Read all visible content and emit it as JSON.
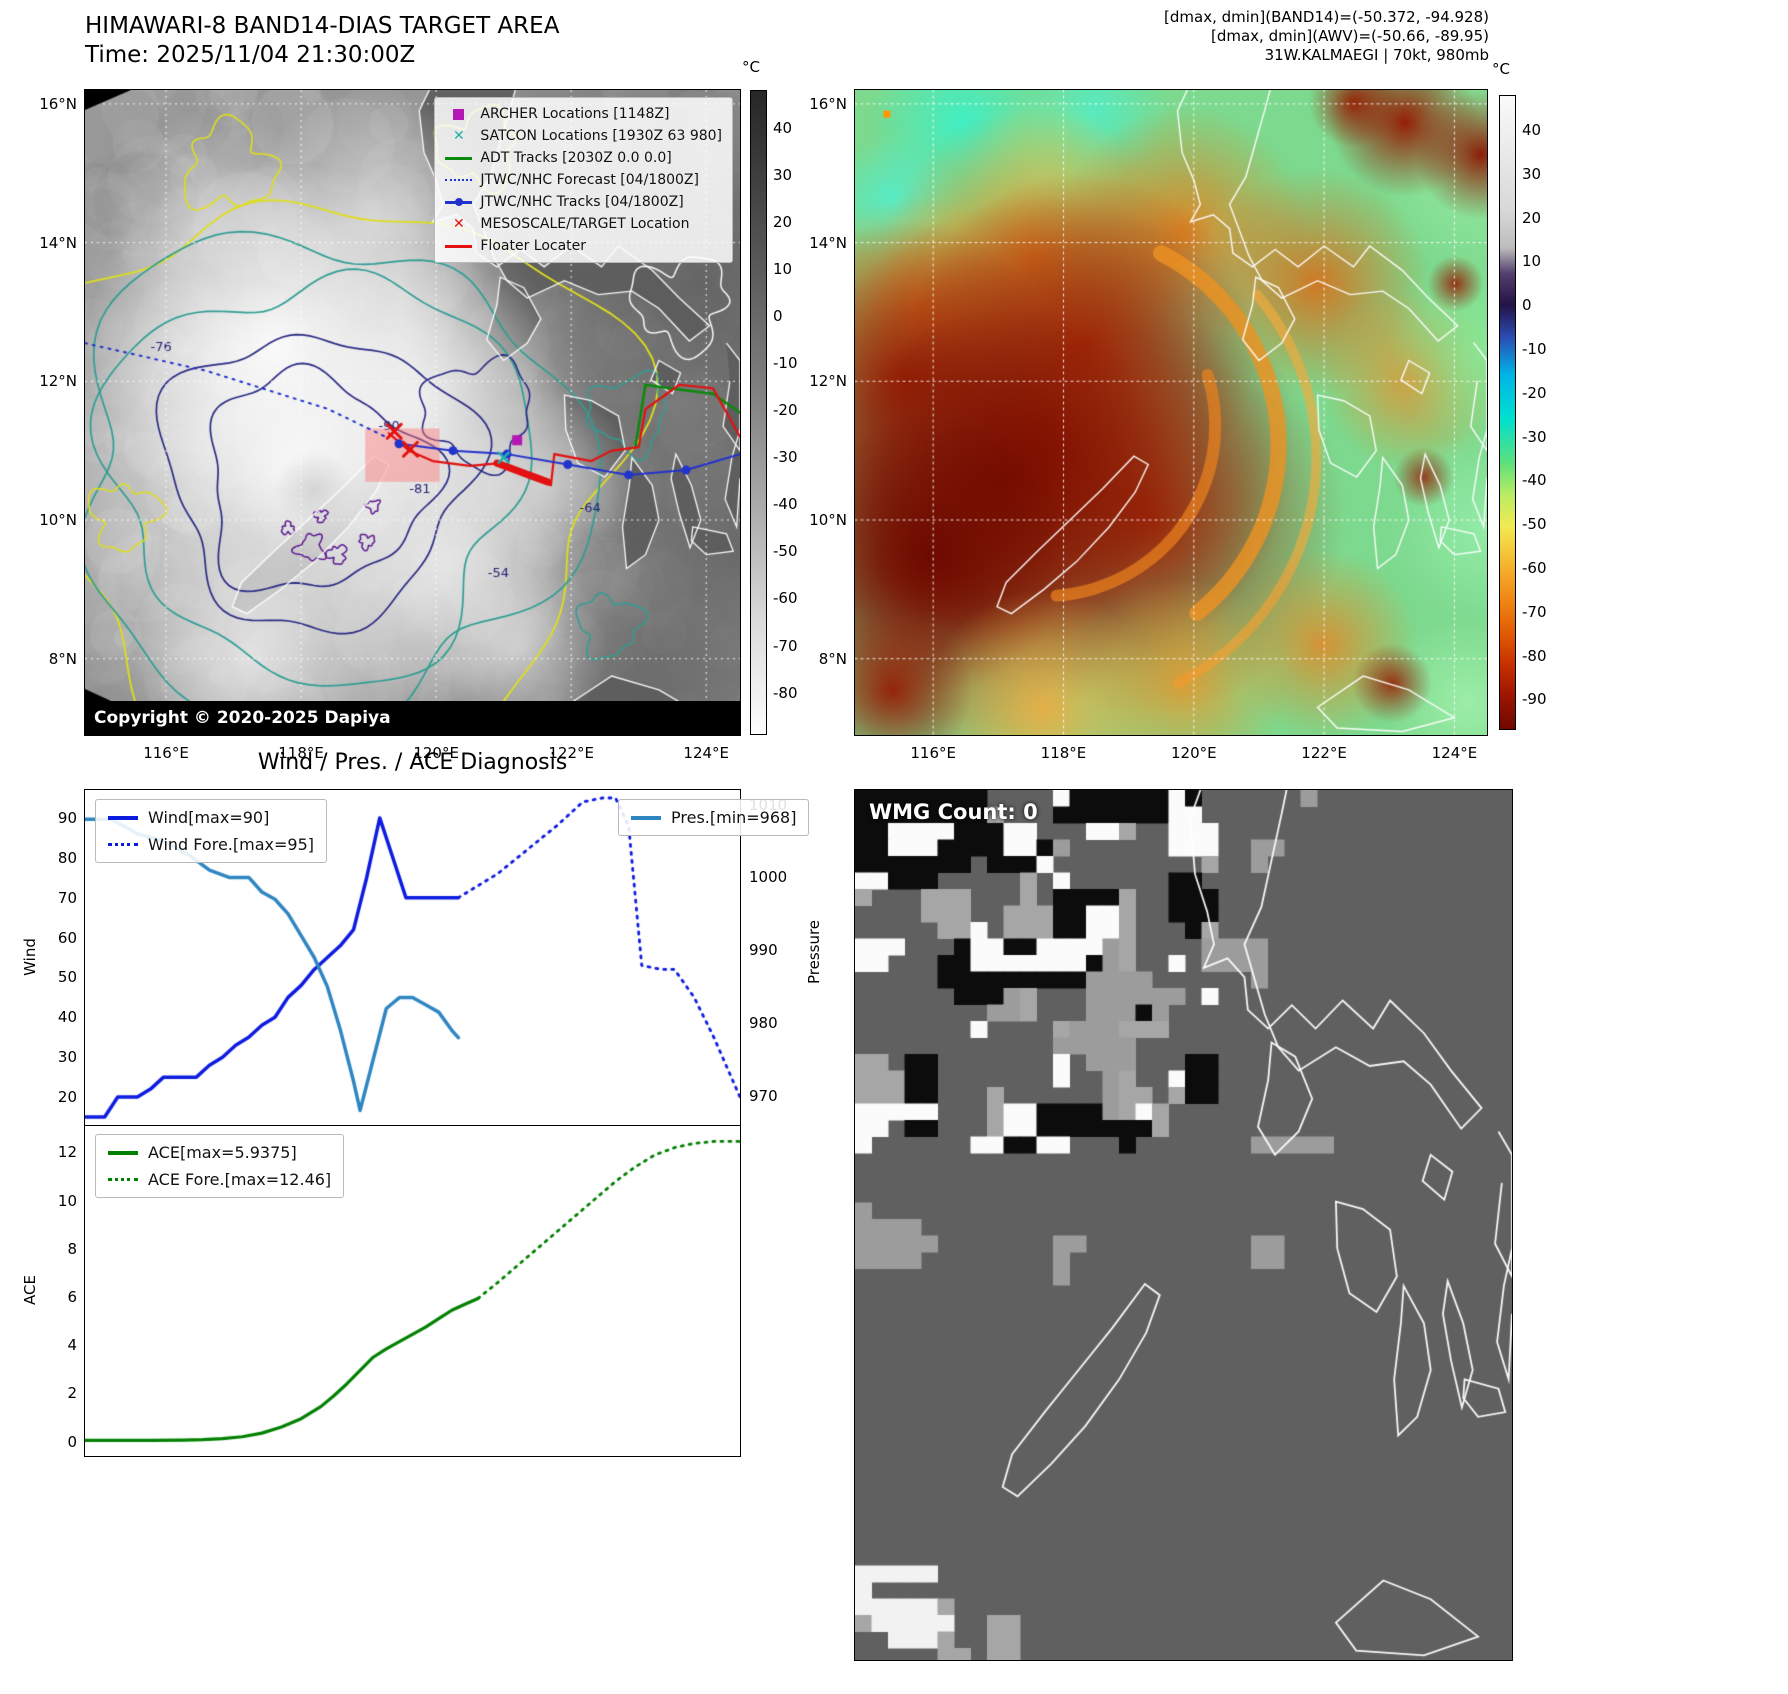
{
  "band14": {
    "title": "HIMAWARI-8 BAND14-DIAS TARGET AREA",
    "time_line": "Time: 2025/11/04 21:30:00Z",
    "copyright": "Copyright © 2020-2025 Dapiya",
    "colorbar_unit": "°C",
    "colorbar_ticks": [
      40,
      30,
      20,
      10,
      0,
      -10,
      -20,
      -30,
      -40,
      -50,
      -60,
      -70,
      -80
    ],
    "lat_ticks": [
      "16°N",
      "14°N",
      "12°N",
      "10°N",
      "8°N"
    ],
    "lon_ticks": [
      "116°E",
      "118°E",
      "120°E",
      "122°E",
      "124°E"
    ],
    "contour_labels": [
      "-76",
      "-81",
      "-90",
      "-64",
      "-54"
    ],
    "legend": [
      {
        "label": "ARCHER Locations [1148Z]",
        "marker": "square",
        "color": "#b517b5"
      },
      {
        "label": "SATCON Locations [1930Z 63 980]",
        "marker": "x",
        "color": "#20b2aa"
      },
      {
        "label": "ADT Tracks [2030Z 0.0 0.0]",
        "marker": "line",
        "color": "#0a8a0a"
      },
      {
        "label": "JTWC/NHC Forecast [04/1800Z]",
        "marker": "dotted-line",
        "color": "#2233cc"
      },
      {
        "label": "JTWC/NHC Tracks [04/1800Z]",
        "marker": "line-marker",
        "color": "#2233cc"
      },
      {
        "label": "MESOSCALE/TARGET Location",
        "marker": "x",
        "color": "#e31111"
      },
      {
        "label": "Floater Locater",
        "marker": "line",
        "color": "#e31111"
      }
    ]
  },
  "awv": {
    "header_lines": [
      "[dmax, dmin](BAND14)=(-50.372, -94.928)",
      "[dmax, dmin](AWV)=(-50.66, -89.95)",
      "31W.KALMAEGI | 70kt, 980mb"
    ],
    "colorbar_unit": "°C",
    "colorbar_ticks": [
      40,
      30,
      20,
      10,
      0,
      -10,
      -20,
      -30,
      -40,
      -50,
      -60,
      -70,
      -80,
      -90
    ],
    "lat_ticks": [
      "16°N",
      "14°N",
      "12°N",
      "10°N",
      "8°N"
    ],
    "lon_ticks": [
      "116°E",
      "118°E",
      "120°E",
      "122°E",
      "124°E"
    ]
  },
  "wmg": {
    "label": "WMG Count: 0"
  },
  "chart_data": [
    {
      "type": "line",
      "title": "Wind / Pres. / ACE Diagnosis",
      "x_range": [
        0,
        100
      ],
      "grid": false,
      "legend_position": "upper-left and upper-right",
      "left_axis": {
        "label": "Wind",
        "range": [
          13,
          97
        ],
        "ticks": [
          20,
          30,
          40,
          50,
          60,
          70,
          80,
          90
        ]
      },
      "right_axis": {
        "label": "Pressure",
        "range": [
          966,
          1012
        ],
        "ticks": [
          970,
          980,
          990,
          1000,
          1010
        ]
      },
      "series": [
        {
          "name": "Wind[max=90]",
          "axis": "left",
          "color": "#0d1be0",
          "width": 3.5,
          "dash": null,
          "x": [
            0,
            3,
            5,
            8,
            10,
            12,
            15,
            17,
            19,
            21,
            23,
            25,
            27,
            29,
            31,
            33,
            35,
            37,
            39,
            41,
            43,
            45,
            47,
            49,
            57
          ],
          "y": [
            15,
            15,
            20,
            20,
            22,
            25,
            25,
            25,
            28,
            30,
            33,
            35,
            38,
            40,
            45,
            48,
            52,
            55,
            58,
            62,
            75,
            90,
            80,
            70,
            70
          ]
        },
        {
          "name": "Wind Fore.[max=95]",
          "axis": "left",
          "color": "#0d1be0",
          "width": 2.8,
          "dash": [
            2,
            6
          ],
          "x": [
            57,
            60,
            63,
            66,
            69,
            72,
            74,
            76,
            79,
            81,
            83,
            85,
            88,
            90,
            93,
            96,
            100
          ],
          "y": [
            70,
            73,
            76,
            80,
            84,
            88,
            91,
            94,
            95,
            95,
            88,
            53,
            52,
            52,
            45,
            35,
            20
          ]
        },
        {
          "name": "Pres.[min=968]",
          "axis": "right",
          "color": "#2e86c1",
          "width": 3.5,
          "dash": null,
          "x": [
            0,
            4,
            8,
            12,
            16,
            19,
            22,
            25,
            27,
            29,
            31,
            33,
            35,
            37,
            39,
            41,
            42,
            44,
            46,
            48,
            50,
            52,
            54,
            56,
            57
          ],
          "y": [
            1008,
            1008,
            1006,
            1005,
            1003,
            1001,
            1000,
            1000,
            998,
            997,
            995,
            992,
            989,
            985,
            979,
            972,
            968,
            975,
            982,
            983.5,
            983.5,
            982.5,
            981.5,
            979,
            978
          ]
        }
      ]
    },
    {
      "type": "line",
      "x_range": [
        0,
        100
      ],
      "grid": false,
      "left_axis": {
        "label": "ACE",
        "range": [
          -0.6,
          13.1
        ],
        "ticks": [
          0,
          2,
          4,
          6,
          8,
          10,
          12
        ]
      },
      "series": [
        {
          "name": "ACE[max=5.9375]",
          "axis": "left",
          "color": "#008000",
          "width": 3.2,
          "dash": null,
          "x": [
            0,
            5,
            10,
            15,
            18,
            21,
            24,
            27,
            30,
            33,
            36,
            38,
            40,
            42,
            44,
            46,
            48,
            50,
            52,
            54,
            56,
            58,
            60
          ],
          "y": [
            0.05,
            0.05,
            0.05,
            0.06,
            0.08,
            0.12,
            0.2,
            0.35,
            0.6,
            0.95,
            1.45,
            1.9,
            2.4,
            2.95,
            3.5,
            3.85,
            4.15,
            4.45,
            4.75,
            5.1,
            5.45,
            5.7,
            5.94
          ]
        },
        {
          "name": "ACE Fore.[max=12.46]",
          "axis": "left",
          "color": "#008000",
          "width": 2.8,
          "dash": [
            2,
            6
          ],
          "x": [
            60,
            63,
            66,
            69,
            72,
            75,
            78,
            81,
            84,
            87,
            90,
            93,
            96,
            100
          ],
          "y": [
            5.94,
            6.6,
            7.3,
            8.0,
            8.7,
            9.4,
            10.1,
            10.8,
            11.4,
            11.9,
            12.2,
            12.38,
            12.46,
            12.46
          ]
        }
      ]
    }
  ]
}
